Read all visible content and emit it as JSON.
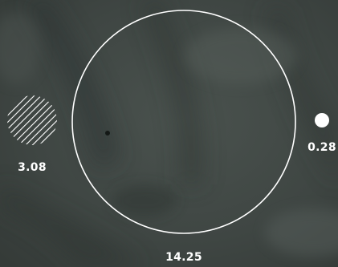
{
  "image": {
    "description_free": true,
    "tint": "#424a46"
  },
  "markers": [
    {
      "name": "hatched-circle-marker",
      "value": "3.08",
      "style": "hatched"
    },
    {
      "name": "large-ring-marker",
      "value": "14.25",
      "style": "outline"
    },
    {
      "name": "small-dot-marker",
      "value": "0.28",
      "style": "filled"
    }
  ],
  "colors": {
    "marker": "#ffffff",
    "background": "#3d4441"
  }
}
